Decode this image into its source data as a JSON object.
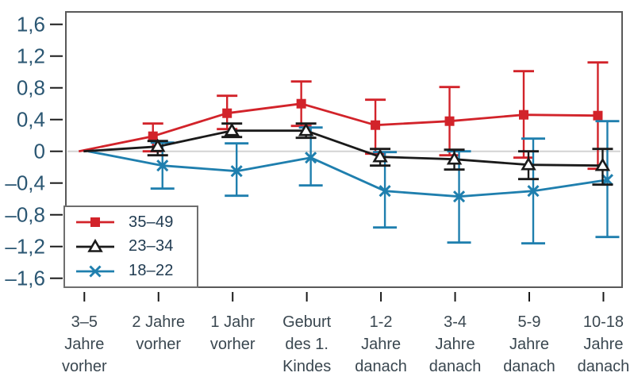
{
  "colors": {
    "red": "#d2232a",
    "black": "#1a1a1a",
    "blue": "#1f7fae",
    "axis_border": "#595959",
    "zero_line": "#d4d4d4",
    "tick": "#1a1a1a",
    "y_tick_label": "#2a5672",
    "x_tick_label": "#3a4750",
    "legend_border": "#6e6e6e",
    "legend_text": "#1f3a50",
    "background": "#ffffff"
  },
  "chart_data": {
    "type": "line",
    "title": "",
    "xlabel": "",
    "ylabel": "",
    "grid": "zero-line-only",
    "error_bars": true,
    "legend_position": "bottom-left-inside",
    "categories": [
      "3–5 Jahre vorher",
      "2 Jahre vorher",
      "1 Jahr vorher",
      "Geburt des 1. Kindes",
      "1-2 Jahre danach",
      "3-4 Jahre danach",
      "5-9 Jahre danach",
      "10-18 Jahre danach"
    ],
    "category_lines": [
      [
        "3–5",
        "Jahre",
        "vorher"
      ],
      [
        "2 Jahre",
        "vorher"
      ],
      [
        "1 Jahr",
        "vorher"
      ],
      [
        "Geburt",
        "des 1.",
        "Kindes"
      ],
      [
        "1-2",
        "Jahre",
        "danach"
      ],
      [
        "3-4",
        "Jahre",
        "danach"
      ],
      [
        "5-9",
        "Jahre",
        "danach"
      ],
      [
        "10-18",
        "Jahre",
        "danach"
      ]
    ],
    "y_axis": {
      "tick_labels": [
        "1,6",
        "1,2",
        "0,8",
        "0,4",
        "0",
        "–0,4",
        "–0,8",
        "–1,2",
        "–1,6"
      ],
      "tick_values": [
        1.6,
        1.2,
        0.8,
        0.4,
        0,
        -0.4,
        -0.8,
        -1.2,
        -1.6
      ],
      "min": -1.71,
      "max": 1.76
    },
    "series": [
      {
        "name": "35–49",
        "color": "#d2232a",
        "marker": "square",
        "values": [
          0,
          0.19,
          0.48,
          0.6,
          0.33,
          0.38,
          0.46,
          0.45
        ],
        "ci_low": [
          null,
          0.0,
          0.28,
          0.32,
          -0.03,
          -0.05,
          -0.08,
          -0.22
        ],
        "ci_high": [
          null,
          0.35,
          0.7,
          0.88,
          0.65,
          0.81,
          1.01,
          1.12
        ]
      },
      {
        "name": "23–34",
        "color": "#1a1a1a",
        "marker": "triangle-open",
        "values": [
          0,
          0.06,
          0.26,
          0.26,
          -0.07,
          -0.1,
          -0.17,
          -0.18
        ],
        "ci_low": [
          null,
          -0.05,
          0.18,
          0.17,
          -0.18,
          -0.23,
          -0.35,
          -0.42
        ],
        "ci_high": [
          null,
          0.13,
          0.35,
          0.35,
          0.03,
          0.02,
          0.0,
          0.03
        ]
      },
      {
        "name": "18–22",
        "color": "#1f7fae",
        "marker": "x",
        "values": [
          0,
          -0.18,
          -0.25,
          -0.08,
          -0.5,
          -0.57,
          -0.5,
          -0.36
        ],
        "ci_low": [
          null,
          -0.47,
          -0.56,
          -0.43,
          -0.96,
          -1.15,
          -1.16,
          -1.08
        ],
        "ci_high": [
          null,
          0.11,
          0.1,
          0.3,
          -0.01,
          0.0,
          0.16,
          0.38
        ]
      }
    ]
  }
}
